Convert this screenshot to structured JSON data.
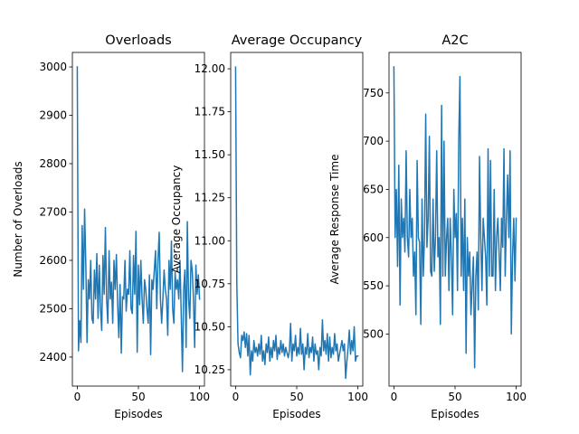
{
  "chart_data": [
    {
      "type": "line",
      "title": "Overloads",
      "xlabel": "Episodes",
      "ylabel": "Number of Overloads",
      "xlim": [
        -4,
        104
      ],
      "ylim": [
        2340,
        3030
      ],
      "xticks": [
        0,
        50,
        100
      ],
      "yticks": [
        2400,
        2500,
        2600,
        2700,
        2800,
        2900,
        3000
      ],
      "ytick_labels": [
        "2400",
        "2500",
        "2600",
        "2700",
        "2800",
        "2900",
        "3000"
      ],
      "grid": false,
      "color": "#1f77b4",
      "x": [
        0,
        1,
        2,
        3,
        4,
        5,
        6,
        7,
        8,
        9,
        10,
        11,
        12,
        13,
        14,
        15,
        16,
        17,
        18,
        19,
        20,
        21,
        22,
        23,
        24,
        25,
        26,
        27,
        28,
        29,
        30,
        31,
        32,
        33,
        34,
        35,
        36,
        37,
        38,
        39,
        40,
        41,
        42,
        43,
        44,
        45,
        46,
        47,
        48,
        49,
        50,
        51,
        52,
        53,
        54,
        55,
        56,
        57,
        58,
        59,
        60,
        61,
        62,
        63,
        64,
        65,
        66,
        67,
        68,
        69,
        70,
        71,
        72,
        73,
        74,
        75,
        76,
        77,
        78,
        79,
        80,
        81,
        82,
        83,
        84,
        85,
        86,
        87,
        88,
        89,
        90,
        91,
        92,
        93,
        94,
        95,
        96,
        97,
        98,
        99,
        100
      ],
      "values": [
        3000,
        2413,
        2475,
        2430,
        2672,
        2540,
        2706,
        2590,
        2430,
        2560,
        2520,
        2600,
        2480,
        2470,
        2580,
        2520,
        2614,
        2480,
        2590,
        2500,
        2455,
        2610,
        2530,
        2668,
        2520,
        2470,
        2620,
        2520,
        2555,
        2470,
        2600,
        2540,
        2612,
        2510,
        2440,
        2550,
        2408,
        2525,
        2520,
        2600,
        2495,
        2540,
        2530,
        2620,
        2500,
        2490,
        2610,
        2530,
        2660,
        2410,
        2590,
        2508,
        2600,
        2520,
        2470,
        2560,
        2540,
        2500,
        2470,
        2570,
        2405,
        2560,
        2540,
        2580,
        2620,
        2500,
        2600,
        2658,
        2520,
        2470,
        2520,
        2580,
        2540,
        2520,
        2445,
        2600,
        2540,
        2640,
        2500,
        2470,
        2575,
        2540,
        2560,
        2520,
        2600,
        2490,
        2370,
        2540,
        2580,
        2420,
        2680,
        2520,
        2480,
        2600,
        2580,
        2520,
        2420,
        2590,
        2530,
        2570,
        2520
      ]
    },
    {
      "type": "line",
      "title": "Average Occupancy",
      "xlabel": "Episodes",
      "ylabel": "Average Occupancy",
      "xlim": [
        -4,
        104
      ],
      "ylim": [
        10.155,
        12.095
      ],
      "xticks": [
        0,
        50,
        100
      ],
      "yticks": [
        10.25,
        10.5,
        10.75,
        11.0,
        11.25,
        11.5,
        11.75,
        12.0
      ],
      "ytick_labels": [
        "10.25",
        "10.50",
        "10.75",
        "11.00",
        "11.25",
        "11.50",
        "11.75",
        "12.00"
      ],
      "grid": false,
      "color": "#1f77b4",
      "x": [
        0,
        1,
        2,
        3,
        4,
        5,
        6,
        7,
        8,
        9,
        10,
        11,
        12,
        13,
        14,
        15,
        16,
        17,
        18,
        19,
        20,
        21,
        22,
        23,
        24,
        25,
        26,
        27,
        28,
        29,
        30,
        31,
        32,
        33,
        34,
        35,
        36,
        37,
        38,
        39,
        40,
        41,
        42,
        43,
        44,
        45,
        46,
        47,
        48,
        49,
        50,
        51,
        52,
        53,
        54,
        55,
        56,
        57,
        58,
        59,
        60,
        61,
        62,
        63,
        64,
        65,
        66,
        67,
        68,
        69,
        70,
        71,
        72,
        73,
        74,
        75,
        76,
        77,
        78,
        79,
        80,
        81,
        82,
        83,
        84,
        85,
        86,
        87,
        88,
        89,
        90,
        91,
        92,
        93,
        94,
        95,
        96,
        97,
        98,
        99,
        100
      ],
      "values": [
        12.01,
        10.75,
        10.4,
        10.35,
        10.32,
        10.45,
        10.42,
        10.47,
        10.38,
        10.46,
        10.33,
        10.45,
        10.22,
        10.36,
        10.3,
        10.42,
        10.35,
        10.38,
        10.33,
        10.4,
        10.34,
        10.45,
        10.3,
        10.36,
        10.28,
        10.4,
        10.35,
        10.44,
        10.3,
        10.38,
        10.32,
        10.42,
        10.36,
        10.45,
        10.31,
        10.38,
        10.34,
        10.42,
        10.35,
        10.4,
        10.33,
        10.38,
        10.35,
        10.32,
        10.36,
        10.52,
        10.3,
        10.4,
        10.36,
        10.45,
        10.33,
        10.38,
        10.34,
        10.49,
        10.34,
        10.4,
        10.25,
        10.38,
        10.34,
        10.46,
        10.32,
        10.38,
        10.35,
        10.44,
        10.3,
        10.4,
        10.34,
        10.36,
        10.25,
        10.38,
        10.33,
        10.54,
        10.36,
        10.42,
        10.34,
        10.46,
        10.3,
        10.44,
        10.32,
        10.38,
        10.34,
        10.46,
        10.36,
        10.4,
        10.3,
        10.34,
        10.38,
        10.42,
        10.36,
        10.4,
        10.2,
        10.3,
        10.38,
        10.48,
        10.34,
        10.42,
        10.36,
        10.5,
        10.3,
        10.33,
        10.33
      ]
    },
    {
      "type": "line",
      "title": "A2C",
      "xlabel": "Episodes",
      "ylabel": "Average Response Time",
      "xlim": [
        -4,
        104
      ],
      "ylim": [
        446,
        792
      ],
      "xticks": [
        0,
        50,
        100
      ],
      "yticks": [
        500,
        550,
        600,
        650,
        700,
        750
      ],
      "ytick_labels": [
        "500",
        "550",
        "600",
        "650",
        "700",
        "750"
      ],
      "grid": false,
      "color": "#1f77b4",
      "x": [
        0,
        1,
        2,
        3,
        4,
        5,
        6,
        7,
        8,
        9,
        10,
        11,
        12,
        13,
        14,
        15,
        16,
        17,
        18,
        19,
        20,
        21,
        22,
        23,
        24,
        25,
        26,
        27,
        28,
        29,
        30,
        31,
        32,
        33,
        34,
        35,
        36,
        37,
        38,
        39,
        40,
        41,
        42,
        43,
        44,
        45,
        46,
        47,
        48,
        49,
        50,
        51,
        52,
        53,
        54,
        55,
        56,
        57,
        58,
        59,
        60,
        61,
        62,
        63,
        64,
        65,
        66,
        67,
        68,
        69,
        70,
        71,
        72,
        73,
        74,
        75,
        76,
        77,
        78,
        79,
        80,
        81,
        82,
        83,
        84,
        85,
        86,
        87,
        88,
        89,
        90,
        91,
        92,
        93,
        94,
        95,
        96,
        97,
        98,
        99,
        100
      ],
      "values": [
        777,
        600,
        650,
        570,
        675,
        530,
        640,
        600,
        620,
        585,
        690,
        600,
        580,
        650,
        600,
        620,
        560,
        585,
        520,
        680,
        600,
        595,
        510,
        640,
        560,
        600,
        728,
        590,
        620,
        705,
        565,
        560,
        640,
        565,
        600,
        690,
        580,
        600,
        510,
        737,
        560,
        700,
        560,
        598,
        620,
        545,
        620,
        580,
        520,
        650,
        600,
        625,
        545,
        700,
        767,
        560,
        620,
        545,
        640,
        480,
        600,
        560,
        585,
        520,
        550,
        580,
        465,
        560,
        585,
        525,
        684,
        600,
        545,
        620,
        600,
        580,
        530,
        692,
        560,
        680,
        560,
        560,
        650,
        545,
        600,
        620,
        585,
        545,
        620,
        590,
        692,
        560,
        620,
        665,
        600,
        690,
        500,
        580,
        620,
        555,
        620
      ]
    }
  ]
}
